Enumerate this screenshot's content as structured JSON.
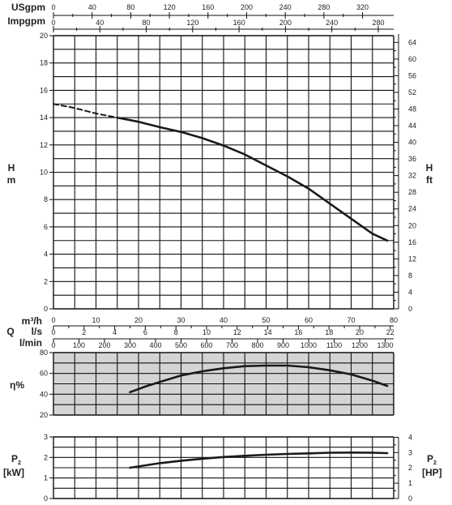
{
  "colors": {
    "grid": "#111111",
    "curve": "#1a1a1a",
    "eff_bg": "#d4d4d4",
    "background": "#ffffff"
  },
  "labels": {
    "usgpm": "USgpm",
    "impgpm": "Impgpm",
    "h_left_top": "H",
    "h_left_bottom": "m",
    "h_right_top": "H",
    "h_right_bottom": "ft",
    "q": "Q",
    "m3h": "m³/h",
    "ls": "l/s",
    "lmin": "l/min",
    "eta": "η%",
    "p2_left": "P",
    "p2_left_sub": "2",
    "p2_left_unit": "[kW]",
    "p2_right": "P",
    "p2_right_sub": "2",
    "p2_right_unit": "[HP]"
  },
  "axes": {
    "usgpm_ticks": [
      "0",
      "40",
      "80",
      "120",
      "160",
      "200",
      "240",
      "280",
      "320"
    ],
    "impgpm_ticks": [
      "0",
      "40",
      "80",
      "120",
      "160",
      "200",
      "240",
      "280"
    ],
    "m3h_ticks": [
      "0",
      "10",
      "20",
      "30",
      "40",
      "50",
      "60",
      "70",
      "80"
    ],
    "ls_ticks": [
      "0",
      "2",
      "4",
      "6",
      "8",
      "10",
      "12",
      "14",
      "16",
      "18",
      "20",
      "22"
    ],
    "lmin_ticks": [
      "0",
      "100",
      "200",
      "300",
      "400",
      "500",
      "600",
      "700",
      "800",
      "900",
      "1000",
      "1100",
      "1200",
      "1300"
    ],
    "h_m_ticks": [
      "0",
      "2",
      "4",
      "6",
      "8",
      "10",
      "12",
      "14",
      "16",
      "18",
      "20"
    ],
    "h_ft_ticks": [
      "0",
      "4",
      "8",
      "12",
      "16",
      "20",
      "24",
      "28",
      "32",
      "36",
      "40",
      "44",
      "48",
      "52",
      "56",
      "60",
      "64"
    ],
    "eta_ticks": [
      "20",
      "40",
      "60",
      "80"
    ],
    "p2_kw_ticks": [
      "0",
      "1",
      "2",
      "3"
    ],
    "p2_hp_ticks": [
      "0",
      "1",
      "2",
      "3",
      "4"
    ]
  },
  "chart_data": [
    {
      "type": "line",
      "title": "",
      "xlabel": "Q m³/h",
      "ylabel": "H m",
      "xlim": [
        0,
        80
      ],
      "ylim": [
        0,
        20
      ],
      "grid": true,
      "series": [
        {
          "style": "dashed",
          "x": [
            0,
            5,
            10,
            15
          ],
          "y": [
            15.0,
            14.7,
            14.3,
            14.0
          ]
        },
        {
          "style": "solid",
          "x": [
            15,
            20,
            25,
            30,
            35,
            40,
            45,
            50,
            55,
            60,
            65,
            70,
            75,
            78.5
          ],
          "y": [
            14.0,
            13.7,
            13.3,
            12.95,
            12.5,
            11.95,
            11.3,
            10.5,
            9.7,
            8.8,
            7.7,
            6.6,
            5.5,
            5.0
          ]
        }
      ]
    },
    {
      "type": "line",
      "title": "",
      "xlabel": "",
      "ylabel": "η%",
      "xlim": [
        0,
        80
      ],
      "ylim": [
        20,
        80
      ],
      "grid": true,
      "series": [
        {
          "style": "solid",
          "x": [
            18,
            22,
            26,
            30,
            35,
            40,
            45,
            50,
            55,
            60,
            65,
            70,
            75,
            78.5
          ],
          "y": [
            42,
            48,
            53,
            58,
            62,
            65,
            67,
            67.5,
            67.5,
            66,
            63,
            59,
            53,
            48
          ]
        }
      ]
    },
    {
      "type": "line",
      "title": "",
      "xlabel": "",
      "ylabel": "P2 [kW]",
      "xlim": [
        0,
        80
      ],
      "ylim": [
        0,
        3
      ],
      "grid": true,
      "series": [
        {
          "style": "solid",
          "x": [
            18,
            25,
            30,
            35,
            40,
            45,
            50,
            55,
            60,
            65,
            70,
            75,
            78.5
          ],
          "y": [
            1.5,
            1.72,
            1.84,
            1.94,
            2.02,
            2.08,
            2.13,
            2.17,
            2.2,
            2.23,
            2.24,
            2.23,
            2.21
          ]
        }
      ]
    }
  ]
}
